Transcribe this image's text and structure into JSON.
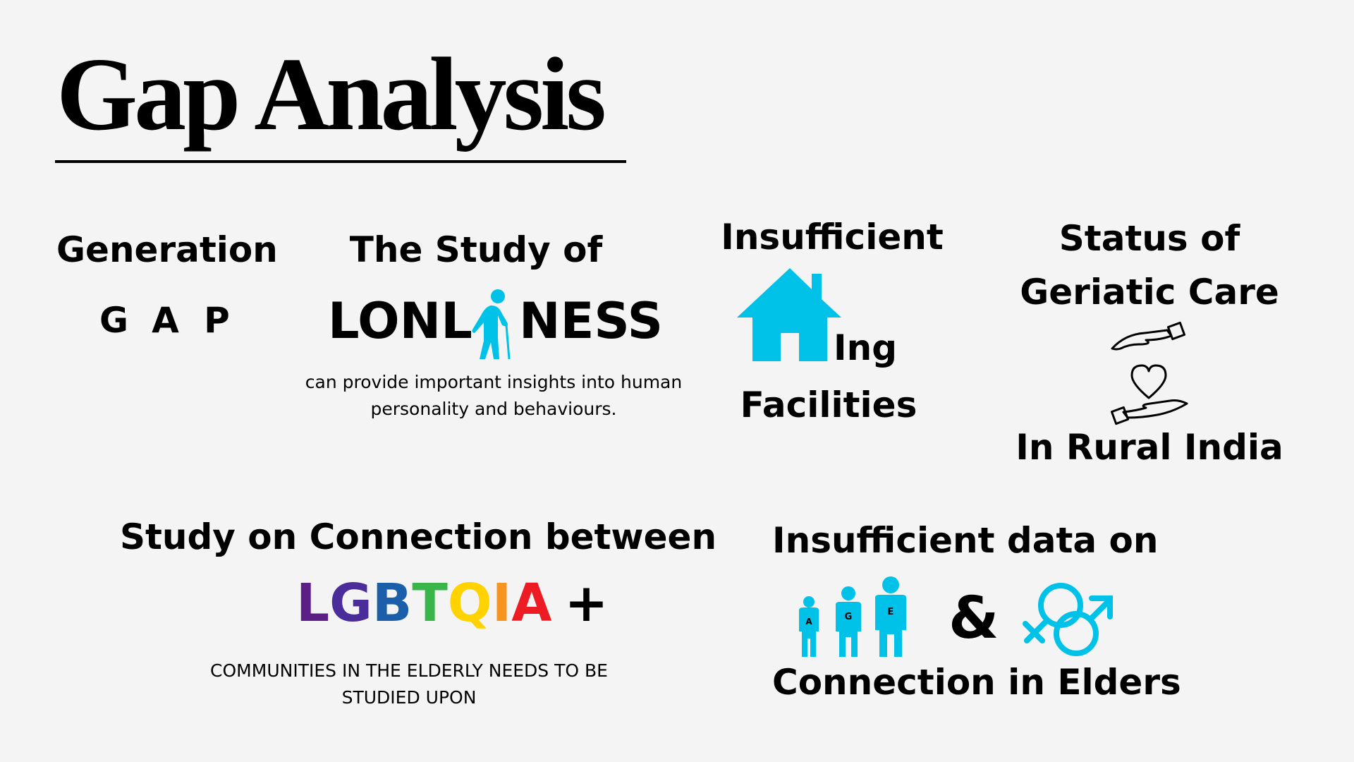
{
  "title": "Gap Analysis",
  "colors": {
    "accent": "#00c2e8",
    "background": "#f4f4f4",
    "text": "#000000"
  },
  "generation_gap": {
    "heading": "Generation",
    "letters": [
      "G",
      "A",
      "P"
    ]
  },
  "loneliness": {
    "heading": "The Study of",
    "word_left": "LONL",
    "word_right": "NESS",
    "icon": "elderly-person-with-cane-icon",
    "description": "can provide important insights into human personality and behaviours."
  },
  "housing": {
    "line1": "Insufficient",
    "icon": "house-icon",
    "suffix": "Ing",
    "line3": "Facilities"
  },
  "geriatric": {
    "heading": "Status of Geriatic Care",
    "icon": "caring-hands-heart-icon",
    "footer": "In Rural India"
  },
  "lgbtqia": {
    "heading": "Study on Connection between",
    "letters": [
      {
        "char": "L",
        "color": "#5b1f86"
      },
      {
        "char": "G",
        "color": "#4a2c9a"
      },
      {
        "char": "B",
        "color": "#1b5faa"
      },
      {
        "char": "T",
        "color": "#39b54a"
      },
      {
        "char": "Q",
        "color": "#ffd200"
      },
      {
        "char": "I",
        "color": "#f7941d"
      },
      {
        "char": "A",
        "color": "#ed1c24"
      }
    ],
    "plus": "+",
    "description": "COMMUNITIES IN THE ELDERLY NEEDS TO BE STUDIED UPON"
  },
  "age_gender": {
    "heading": "Insufficient data on",
    "age_letters": [
      "A",
      "G",
      "E"
    ],
    "ampersand": "&",
    "gender_icon": "gender-symbols-icon",
    "footer": "Connection in Elders"
  }
}
